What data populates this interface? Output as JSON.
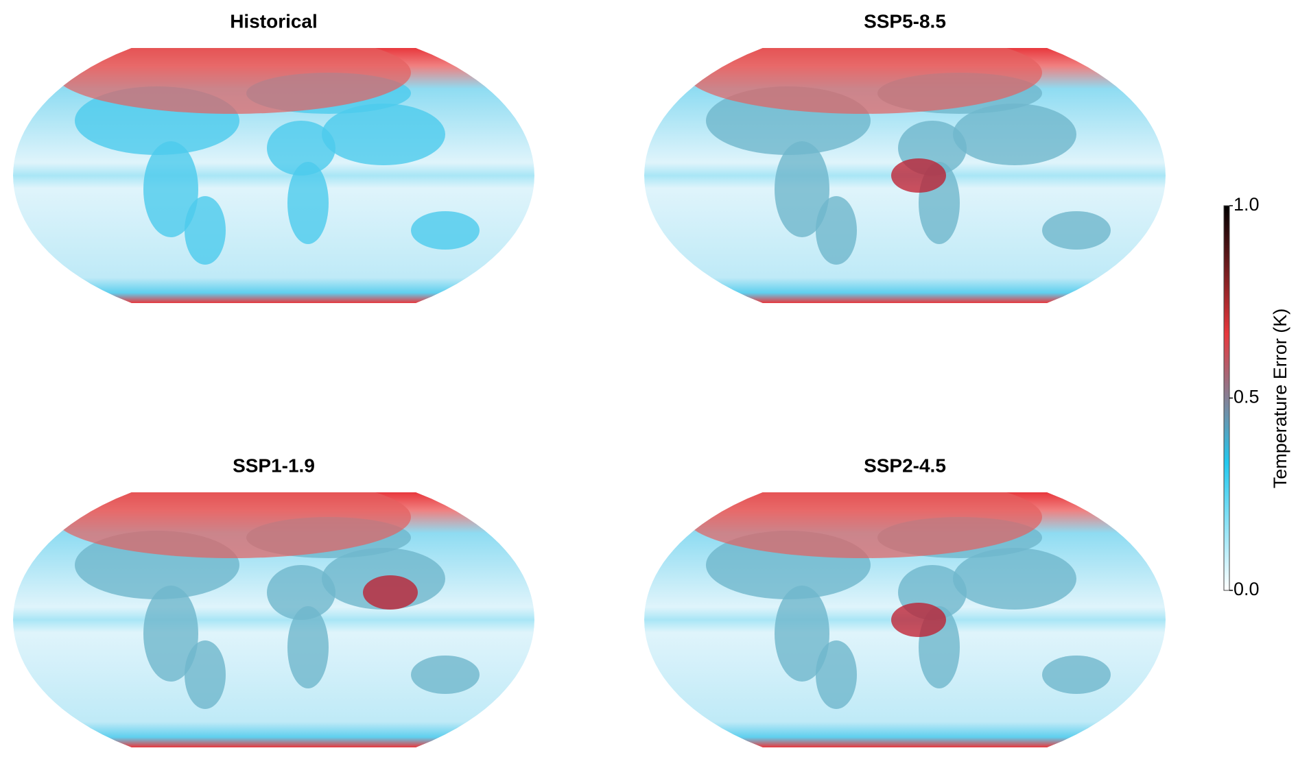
{
  "chart_data": {
    "type": "map",
    "panels": [
      {
        "title": "Historical"
      },
      {
        "title": "SSP5-8.5"
      },
      {
        "title": "SSP1-1.9"
      },
      {
        "title": "SSP2-4.5"
      }
    ],
    "colorbar": {
      "label": "Temperature Error (K)",
      "lim": [
        0,
        1
      ],
      "ticks": [
        {
          "value": 0,
          "label": "0.0"
        },
        {
          "value": 0.5,
          "label": "0.5"
        },
        {
          "value": 1,
          "label": "1.0"
        }
      ],
      "colors": [
        "#ffffff",
        "#22c8ee",
        "#e8383d",
        "#000000"
      ]
    }
  }
}
